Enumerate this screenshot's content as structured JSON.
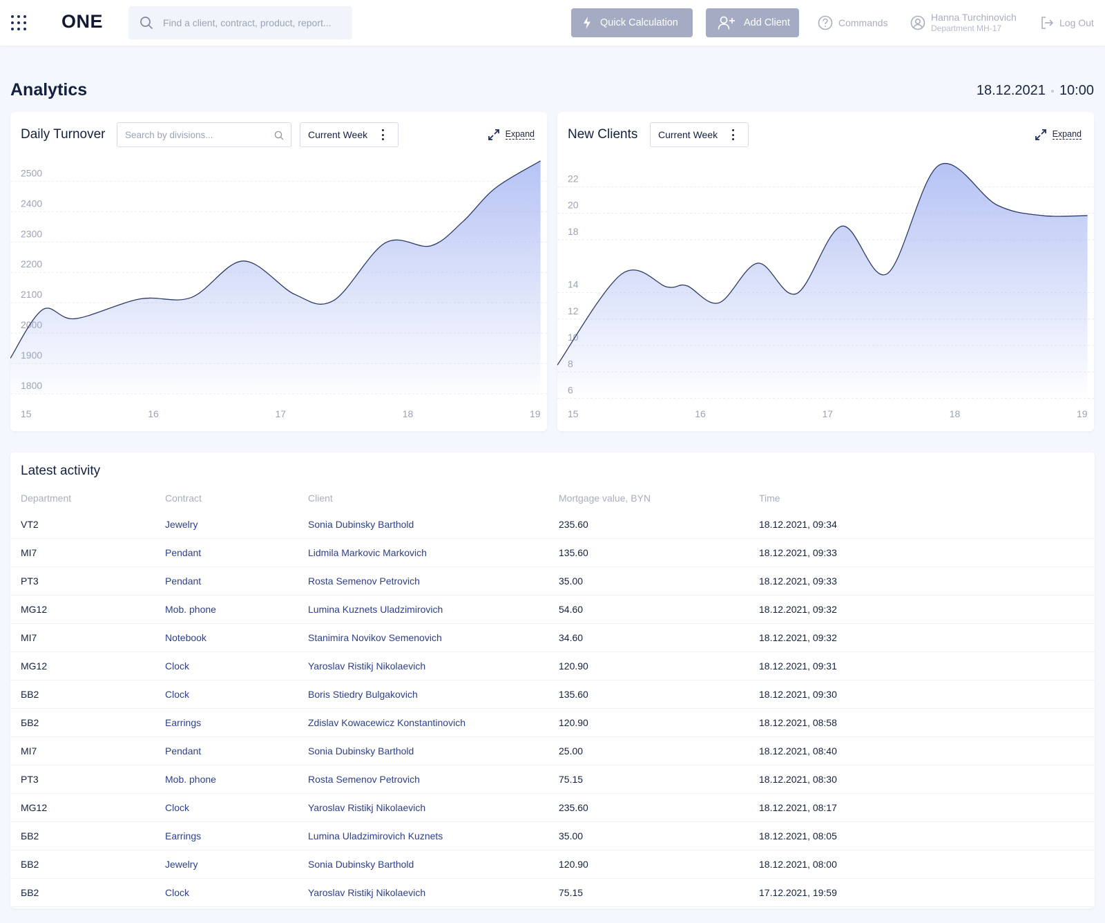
{
  "header": {
    "logo": "ONE",
    "search_placeholder": "Find a client, contract, product, report...",
    "quick_calc_label": "Quick Calculation",
    "add_client_label": "Add Client",
    "commands_label": "Commands",
    "user_name": "Hanna Turchinovich",
    "user_department": "Department MH-17",
    "logout_label": "Log Out"
  },
  "page": {
    "title": "Analytics",
    "date": "18.12.2021",
    "time": "10:00"
  },
  "turnover": {
    "title": "Daily Turnover",
    "search_placeholder": "Search by divisions...",
    "period": "Current Week",
    "expand_label": "Expand"
  },
  "clients": {
    "title": "New Clients",
    "period": "Current Week",
    "expand_label": "Expand"
  },
  "chart_data": [
    {
      "type": "area",
      "title": "Daily Turnover",
      "x": [
        15,
        15.25,
        15.5,
        16,
        16.4,
        16.8,
        17.2,
        17.5,
        17.9,
        18.25,
        18.5,
        18.75,
        19.1
      ],
      "values": [
        1890,
        2050,
        2020,
        2085,
        2090,
        2210,
        2100,
        2080,
        2270,
        2260,
        2340,
        2450,
        2540
      ],
      "x_ticks": [
        15,
        16,
        17,
        18,
        19
      ],
      "y_ticks": [
        1800,
        1900,
        2000,
        2100,
        2200,
        2300,
        2400,
        2500
      ],
      "xlim": [
        15,
        19.15
      ],
      "ylim": [
        1750,
        2560
      ],
      "grid": true
    },
    {
      "type": "area",
      "title": "New Clients",
      "x": [
        15,
        15.5,
        15.85,
        16,
        16.25,
        16.55,
        16.85,
        17.2,
        17.55,
        17.95,
        18.4,
        18.75,
        19.1
      ],
      "values": [
        7.9,
        14.8,
        13.8,
        13.9,
        12.6,
        15.6,
        13.3,
        18.4,
        14.8,
        23.0,
        20.0,
        19.2,
        19.2
      ],
      "x_ticks": [
        15,
        16,
        17,
        18,
        19
      ],
      "y_ticks": [
        6,
        8,
        10,
        12,
        14,
        18,
        20,
        22
      ],
      "xlim": [
        15,
        19.15
      ],
      "ylim": [
        5.2,
        23.8
      ],
      "grid": true
    }
  ],
  "activity": {
    "title": "Latest activity",
    "columns": [
      "Department",
      "Contract",
      "Client",
      "Mortgage value, BYN",
      "Time"
    ],
    "rows": [
      {
        "dep": "VT2",
        "con": "Jewelry",
        "cli": "Sonia Dubinsky Barthold",
        "mor": "235.60",
        "tim": "18.12.2021, 09:34"
      },
      {
        "dep": "MI7",
        "con": "Pendant",
        "cli": "Lidmila Markovic Markovich",
        "mor": "135.60",
        "tim": "18.12.2021, 09:33"
      },
      {
        "dep": "PT3",
        "con": "Pendant",
        "cli": "Rosta Semenov Petrovich",
        "mor": "35.00",
        "tim": "18.12.2021, 09:33"
      },
      {
        "dep": "MG12",
        "con": "Mob. phone",
        "cli": "Lumina Kuznets Uladzimirovich",
        "mor": "54.60",
        "tim": "18.12.2021, 09:32"
      },
      {
        "dep": "MI7",
        "con": "Notebook",
        "cli": "Stanimira Novikov Semenovich",
        "mor": "34.60",
        "tim": "18.12.2021, 09:32"
      },
      {
        "dep": "MG12",
        "con": "Clock",
        "cli": "Yaroslav Ristikj Nikolaevich",
        "mor": "120.90",
        "tim": "18.12.2021, 09:31"
      },
      {
        "dep": "БВ2",
        "con": "Clock",
        "cli": "Boris Stiedry Bulgakovich",
        "mor": "135.60",
        "tim": "18.12.2021, 09:30"
      },
      {
        "dep": "БВ2",
        "con": "Earrings",
        "cli": "Zdislav Kowacewicz Konstantinovich",
        "mor": "120.90",
        "tim": "18.12.2021, 08:58"
      },
      {
        "dep": "MI7",
        "con": "Pendant",
        "cli": "Sonia Dubinsky Barthold",
        "mor": "25.00",
        "tim": "18.12.2021, 08:40"
      },
      {
        "dep": "PT3",
        "con": "Mob. phone",
        "cli": "Rosta Semenov Petrovich",
        "mor": "75.15",
        "tim": "18.12.2021, 08:30"
      },
      {
        "dep": "MG12",
        "con": "Clock",
        "cli": "Yaroslav Ristikj Nikolaevich",
        "mor": "235.60",
        "tim": "18.12.2021, 08:17"
      },
      {
        "dep": "БВ2",
        "con": "Earrings",
        "cli": "Lumina Uladzimirovich Kuznets",
        "mor": "35.00",
        "tim": "18.12.2021, 08:05"
      },
      {
        "dep": "БВ2",
        "con": "Jewelry",
        "cli": "Sonia Dubinsky Barthold",
        "mor": "120.90",
        "tim": "18.12.2021, 08:00"
      },
      {
        "dep": "БВ2",
        "con": "Clock",
        "cli": "Yaroslav Ristikj Nikolaevich",
        "mor": "75.15",
        "tim": "17.12.2021, 19:59"
      }
    ]
  },
  "colors": {
    "accent": "#2c3f8a",
    "line": "#2b3a66",
    "area": "#a9b8f2",
    "button": "#a4abc3"
  }
}
